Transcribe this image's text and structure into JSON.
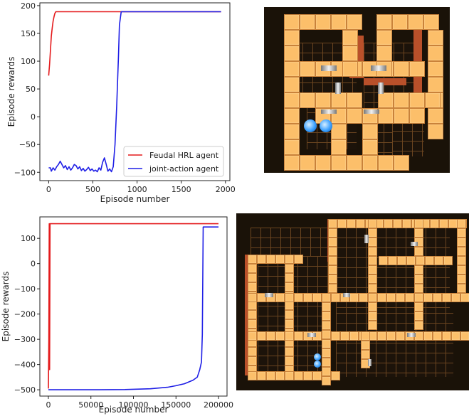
{
  "colors": {
    "feudal": "#e41a1c",
    "joint": "#1f1fe6",
    "axis": "#222222",
    "maze_tile": "#fcbf6a",
    "maze_wall": "#b9502a",
    "maze_bg": "#1a1208",
    "agent": "#3aa0ff"
  },
  "icons": {
    "top_maze": "maze-environment-icon",
    "bottom_maze": "large-maze-environment-icon"
  },
  "chart_data": [
    {
      "type": "line",
      "title": "",
      "xlabel": "Episode number",
      "ylabel": "Episode rewards",
      "xlim": [
        -100,
        2050
      ],
      "ylim": [
        -115,
        205
      ],
      "xticks": [
        0,
        500,
        1000,
        1500,
        2000
      ],
      "xtick_labels": [
        "0",
        "500",
        "1000",
        "1500",
        "2000"
      ],
      "yticks": [
        -100,
        -50,
        0,
        50,
        100,
        150,
        200
      ],
      "ytick_labels": [
        "−100",
        "−50",
        "0",
        "50",
        "100",
        "150",
        "200"
      ],
      "grid": false,
      "legend": "lower-right",
      "series": [
        {
          "name": "Feudal HRL agent",
          "color": "#e41a1c",
          "x": [
            0,
            10,
            20,
            30,
            40,
            50,
            60,
            70,
            80,
            100,
            1950
          ],
          "y": [
            74,
            95,
            120,
            145,
            160,
            172,
            180,
            186,
            189,
            189,
            189
          ]
        },
        {
          "name": "joint-action agent",
          "color": "#1f1fe6",
          "x": [
            0,
            20,
            30,
            50,
            70,
            90,
            110,
            130,
            150,
            170,
            190,
            210,
            230,
            250,
            270,
            290,
            310,
            330,
            350,
            370,
            390,
            410,
            430,
            450,
            470,
            490,
            510,
            530,
            550,
            570,
            590,
            610,
            630,
            650,
            670,
            690,
            710,
            730,
            750,
            770,
            790,
            800,
            820,
            1950
          ],
          "y": [
            -92,
            -92,
            -98,
            -92,
            -96,
            -90,
            -86,
            -80,
            -86,
            -92,
            -88,
            -95,
            -90,
            -96,
            -92,
            -86,
            -88,
            -94,
            -90,
            -97,
            -93,
            -98,
            -95,
            -91,
            -97,
            -94,
            -98,
            -96,
            -99,
            -92,
            -96,
            -82,
            -74,
            -85,
            -98,
            -94,
            -99,
            -90,
            -50,
            20,
            110,
            165,
            189,
            189
          ]
        }
      ]
    },
    {
      "type": "line",
      "title": "",
      "xlabel": "Episode number",
      "ylabel": "Episode rewards",
      "xlim": [
        -10000,
        210000
      ],
      "ylim": [
        -525,
        185
      ],
      "xticks": [
        0,
        50000,
        100000,
        150000,
        200000
      ],
      "xtick_labels": [
        "0",
        "50000",
        "100000",
        "150000",
        "200000"
      ],
      "yticks": [
        -500,
        -400,
        -300,
        -200,
        -100,
        0,
        100
      ],
      "ytick_labels": [
        "−500",
        "−400",
        "−300",
        "−200",
        "−100",
        "0",
        "100"
      ],
      "grid": false,
      "legend": "none",
      "series": [
        {
          "color": "#e41a1c",
          "x": [
            0,
            500,
            1000,
            1500,
            2000,
            200000
          ],
          "y": [
            -495,
            -300,
            158,
            -420,
            158,
            158
          ]
        },
        {
          "color": "#1f1fe6",
          "x": [
            0,
            30000,
            60000,
            90000,
            120000,
            140000,
            150000,
            160000,
            170000,
            175000,
            178000,
            180000,
            181000,
            182000,
            200000
          ],
          "y": [
            -500,
            -500,
            -500,
            -499,
            -496,
            -490,
            -484,
            -476,
            -462,
            -450,
            -420,
            -390,
            -280,
            145,
            145
          ]
        }
      ]
    }
  ]
}
